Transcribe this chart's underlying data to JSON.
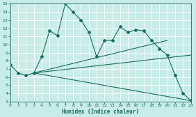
{
  "xlabel": "Humidex (Indice chaleur)",
  "bg_color": "#c8ece8",
  "line_color": "#1a6b5a",
  "grid_color": "#ffffff",
  "xlim": [
    0,
    23
  ],
  "ylim": [
    3,
    15
  ],
  "xticks": [
    0,
    1,
    2,
    3,
    4,
    5,
    6,
    7,
    8,
    9,
    10,
    11,
    12,
    13,
    14,
    15,
    16,
    17,
    18,
    19,
    20,
    21,
    22,
    23
  ],
  "yticks": [
    3,
    4,
    5,
    6,
    7,
    8,
    9,
    10,
    11,
    12,
    13,
    14,
    15
  ],
  "series1_x": [
    0,
    1,
    2,
    3,
    4,
    5,
    6,
    7,
    8,
    9,
    10,
    11,
    12,
    13,
    14,
    15,
    16,
    17,
    18,
    19,
    20,
    21,
    22,
    23
  ],
  "series1_y": [
    7.5,
    6.5,
    6.2,
    6.5,
    8.5,
    11.7,
    11.1,
    15.0,
    14.0,
    13.0,
    11.5,
    8.5,
    10.5,
    10.5,
    12.2,
    11.5,
    11.8,
    11.7,
    10.5,
    9.5,
    8.7,
    6.2,
    4.0,
    3.1
  ],
  "line2_x": [
    3,
    20
  ],
  "line2_y": [
    6.5,
    10.5
  ],
  "line3_x": [
    3,
    23
  ],
  "line3_y": [
    6.5,
    8.7
  ],
  "line4_x": [
    3,
    23
  ],
  "line4_y": [
    6.5,
    3.1
  ]
}
